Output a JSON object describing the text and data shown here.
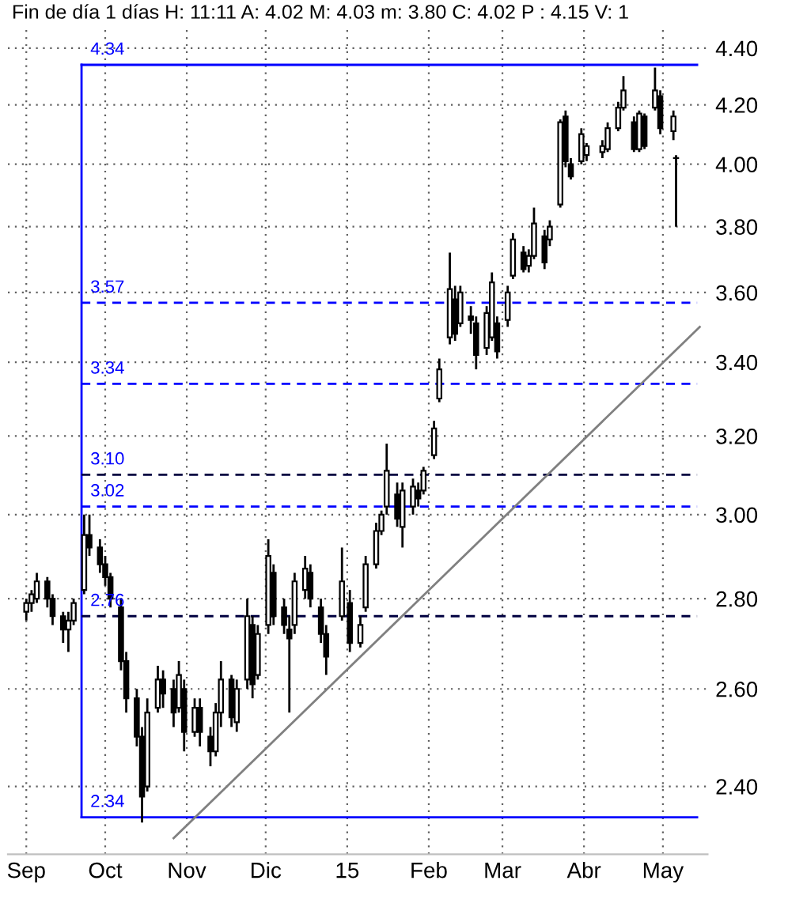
{
  "chart_data": {
    "type": "candlestick",
    "title": "Fin de día 1 días H: 11:11 A: 4.02 M: 4.03 m: 3.80 C: 4.02 P : 4.15 V: 1",
    "x": [
      "2014-09-01",
      "2014-09-03",
      "2014-09-05",
      "2014-09-09",
      "2014-09-11",
      "2014-09-15",
      "2014-09-17",
      "2014-09-19",
      "2014-09-23",
      "2014-09-25",
      "2014-09-29",
      "2014-10-01",
      "2014-10-03",
      "2014-10-07",
      "2014-10-09",
      "2014-10-13",
      "2014-10-15",
      "2014-10-17",
      "2014-10-21",
      "2014-10-23",
      "2014-10-27",
      "2014-10-29",
      "2014-10-31",
      "2014-11-04",
      "2014-11-06",
      "2014-11-10",
      "2014-11-12",
      "2014-11-14",
      "2014-11-18",
      "2014-11-20",
      "2014-11-24",
      "2014-11-26",
      "2014-11-28",
      "2014-12-02",
      "2014-12-04",
      "2014-12-08",
      "2014-12-10",
      "2014-12-12",
      "2014-12-16",
      "2014-12-18",
      "2014-12-22",
      "2014-12-24",
      "2014-12-30",
      "2015-01-02",
      "2015-01-06",
      "2015-01-08",
      "2015-01-12",
      "2015-01-14",
      "2015-01-16",
      "2015-01-20",
      "2015-01-22",
      "2015-01-26",
      "2015-01-28",
      "2015-01-30",
      "2015-02-03",
      "2015-02-05",
      "2015-02-09",
      "2015-02-11",
      "2015-02-13",
      "2015-02-17",
      "2015-02-19",
      "2015-02-23",
      "2015-02-25",
      "2015-02-27",
      "2015-03-03",
      "2015-03-05",
      "2015-03-09",
      "2015-03-11",
      "2015-03-13",
      "2015-03-17",
      "2015-03-19",
      "2015-03-23",
      "2015-03-25",
      "2015-03-27",
      "2015-03-31",
      "2015-04-02",
      "2015-04-08",
      "2015-04-10",
      "2015-04-14",
      "2015-04-16",
      "2015-04-20",
      "2015-04-22",
      "2015-04-24",
      "2015-04-28",
      "2015-04-30",
      "2015-05-05",
      "2015-05-06"
    ],
    "ohlc": [
      [
        2.77,
        2.8,
        2.75,
        2.79
      ],
      [
        2.79,
        2.82,
        2.77,
        2.81
      ],
      [
        2.8,
        2.86,
        2.79,
        2.84
      ],
      [
        2.84,
        2.85,
        2.78,
        2.8
      ],
      [
        2.8,
        2.81,
        2.74,
        2.76
      ],
      [
        2.76,
        2.77,
        2.7,
        2.73
      ],
      [
        2.73,
        2.77,
        2.68,
        2.75
      ],
      [
        2.75,
        2.8,
        2.74,
        2.79
      ],
      [
        2.82,
        3.0,
        2.81,
        2.95
      ],
      [
        2.95,
        3.0,
        2.9,
        2.92
      ],
      [
        2.92,
        2.94,
        2.86,
        2.88
      ],
      [
        2.88,
        2.9,
        2.83,
        2.85
      ],
      [
        2.85,
        2.86,
        2.78,
        2.8
      ],
      [
        2.78,
        2.8,
        2.64,
        2.66
      ],
      [
        2.66,
        2.68,
        2.55,
        2.58
      ],
      [
        2.58,
        2.6,
        2.48,
        2.5
      ],
      [
        2.5,
        2.52,
        2.33,
        2.38
      ],
      [
        2.4,
        2.58,
        2.39,
        2.55
      ],
      [
        2.56,
        2.65,
        2.55,
        2.62
      ],
      [
        2.62,
        2.64,
        2.56,
        2.59
      ],
      [
        2.6,
        2.62,
        2.52,
        2.55
      ],
      [
        2.56,
        2.66,
        2.55,
        2.63
      ],
      [
        2.6,
        2.62,
        2.47,
        2.51
      ],
      [
        2.51,
        2.58,
        2.5,
        2.56
      ],
      [
        2.56,
        2.58,
        2.48,
        2.51
      ],
      [
        2.5,
        2.52,
        2.44,
        2.47
      ],
      [
        2.47,
        2.57,
        2.46,
        2.55
      ],
      [
        2.55,
        2.66,
        2.52,
        2.62
      ],
      [
        2.62,
        2.63,
        2.52,
        2.54
      ],
      [
        2.53,
        2.62,
        2.51,
        2.6
      ],
      [
        2.62,
        2.8,
        2.6,
        2.76
      ],
      [
        2.74,
        2.76,
        2.58,
        2.61
      ],
      [
        2.63,
        2.74,
        2.62,
        2.72
      ],
      [
        2.74,
        2.94,
        2.72,
        2.9
      ],
      [
        2.86,
        2.88,
        2.74,
        2.76
      ],
      [
        2.78,
        2.8,
        2.72,
        2.74
      ],
      [
        2.73,
        2.76,
        2.55,
        2.71
      ],
      [
        2.74,
        2.86,
        2.72,
        2.84
      ],
      [
        2.82,
        2.9,
        2.8,
        2.87
      ],
      [
        2.86,
        2.88,
        2.78,
        2.8
      ],
      [
        2.78,
        2.8,
        2.7,
        2.72
      ],
      [
        2.72,
        2.74,
        2.63,
        2.67
      ],
      [
        2.76,
        2.92,
        2.75,
        2.84
      ],
      [
        2.79,
        2.82,
        2.68,
        2.7
      ],
      [
        2.7,
        2.76,
        2.69,
        2.74
      ],
      [
        2.78,
        2.9,
        2.77,
        2.88
      ],
      [
        2.88,
        2.98,
        2.87,
        2.96
      ],
      [
        2.96,
        3.01,
        2.95,
        3.0
      ],
      [
        3.02,
        3.18,
        3.0,
        3.11
      ],
      [
        3.05,
        3.08,
        2.97,
        2.99
      ],
      [
        2.97,
        3.08,
        2.92,
        3.06
      ],
      [
        3.02,
        3.09,
        3.0,
        3.07
      ],
      [
        3.06,
        3.08,
        3.02,
        3.04
      ],
      [
        3.06,
        3.12,
        3.05,
        3.11
      ],
      [
        3.15,
        3.24,
        3.14,
        3.22
      ],
      [
        3.3,
        3.41,
        3.29,
        3.38
      ],
      [
        3.47,
        3.72,
        3.45,
        3.61
      ],
      [
        3.58,
        3.62,
        3.46,
        3.48
      ],
      [
        3.51,
        3.62,
        3.5,
        3.6
      ],
      [
        3.53,
        3.56,
        3.48,
        3.52
      ],
      [
        3.51,
        3.53,
        3.38,
        3.42
      ],
      [
        3.44,
        3.56,
        3.42,
        3.54
      ],
      [
        3.47,
        3.66,
        3.46,
        3.63
      ],
      [
        3.51,
        3.53,
        3.41,
        3.43
      ],
      [
        3.52,
        3.62,
        3.5,
        3.6
      ],
      [
        3.65,
        3.78,
        3.64,
        3.76
      ],
      [
        3.72,
        3.74,
        3.66,
        3.67
      ],
      [
        3.68,
        3.73,
        3.66,
        3.71
      ],
      [
        3.71,
        3.86,
        3.7,
        3.81
      ],
      [
        3.77,
        3.79,
        3.67,
        3.69
      ],
      [
        3.76,
        3.82,
        3.74,
        3.8
      ],
      [
        3.87,
        4.15,
        3.86,
        4.14
      ],
      [
        4.16,
        4.18,
        3.99,
        4.01
      ],
      [
        4.0,
        4.02,
        3.95,
        3.96
      ],
      [
        4.01,
        4.12,
        4.0,
        4.1
      ],
      [
        4.03,
        4.07,
        4.01,
        4.06
      ],
      [
        4.04,
        4.08,
        4.02,
        4.06
      ],
      [
        4.05,
        4.14,
        4.04,
        4.12
      ],
      [
        4.12,
        4.21,
        4.11,
        4.19
      ],
      [
        4.19,
        4.3,
        4.18,
        4.25
      ],
      [
        4.14,
        4.16,
        4.04,
        4.05
      ],
      [
        4.05,
        4.18,
        4.04,
        4.17
      ],
      [
        4.16,
        4.17,
        4.05,
        4.06
      ],
      [
        4.19,
        4.33,
        4.18,
        4.25
      ],
      [
        4.23,
        4.25,
        4.1,
        4.12
      ],
      [
        4.11,
        4.18,
        4.08,
        4.16
      ],
      [
        4.02,
        4.03,
        3.8,
        4.02
      ]
    ],
    "series": [
      {
        "type": "line",
        "color": "#808080",
        "x": [
          "2014-10-27",
          "2015-05-15"
        ],
        "values": [
          2.3,
          3.5
        ]
      }
    ],
    "log": true,
    "xlim": [
      "2014-08-25",
      "2015-05-18"
    ],
    "ylim": [
      2.27,
      4.47
    ],
    "xticks": [
      {
        "value": "2014-09-01",
        "label": "Sep"
      },
      {
        "value": "2014-10-01",
        "label": "Oct"
      },
      {
        "value": "2014-11-01",
        "label": "Nov"
      },
      {
        "value": "2014-12-01",
        "label": "Dic"
      },
      {
        "value": "2015-01-01",
        "label": "15"
      },
      {
        "value": "2015-02-01",
        "label": "Feb"
      },
      {
        "value": "2015-03-01",
        "label": "Mar"
      },
      {
        "value": "2015-04-01",
        "label": "Abr"
      },
      {
        "value": "2015-05-01",
        "label": "May"
      }
    ],
    "yticks": [
      {
        "value": 2.4,
        "label": "2.40"
      },
      {
        "value": 2.6,
        "label": "2.60"
      },
      {
        "value": 2.8,
        "label": "2.80"
      },
      {
        "value": 3.0,
        "label": "3.00"
      },
      {
        "value": 3.2,
        "label": "3.20"
      },
      {
        "value": 3.4,
        "label": "3.40"
      },
      {
        "value": 3.6,
        "label": "3.60"
      },
      {
        "value": 3.8,
        "label": "3.80"
      },
      {
        "value": 4.0,
        "label": "4.00"
      },
      {
        "value": 4.2,
        "label": "4.20"
      },
      {
        "value": 4.4,
        "label": "4.40"
      }
    ],
    "grid": true,
    "ref_lines": [
      {
        "axis": "x",
        "value": "2014-09-22",
        "color": "#0000ff",
        "line_style": "solid"
      },
      {
        "axis": "y",
        "value": 4.34,
        "label": "4.34",
        "color": "#0000ff",
        "line_style": "solid"
      },
      {
        "axis": "y",
        "value": 3.57,
        "label": "3.57",
        "color": "#0000ff",
        "line_style": "dashed"
      },
      {
        "axis": "y",
        "value": 3.34,
        "label": "3.34",
        "color": "#0000ff",
        "line_style": "dashed"
      },
      {
        "axis": "y",
        "value": 3.1,
        "label": "3.10",
        "color": "#000040",
        "line_style": "dashed"
      },
      {
        "axis": "y",
        "value": 3.02,
        "label": "3.02",
        "color": "#0000ff",
        "line_style": "dashed"
      },
      {
        "axis": "y",
        "value": 2.76,
        "label": "2.76",
        "color": "#000040",
        "line_style": "dashed"
      },
      {
        "axis": "y",
        "value": 2.34,
        "label": "2.34",
        "color": "#0000ff",
        "line_style": "solid"
      }
    ]
  }
}
